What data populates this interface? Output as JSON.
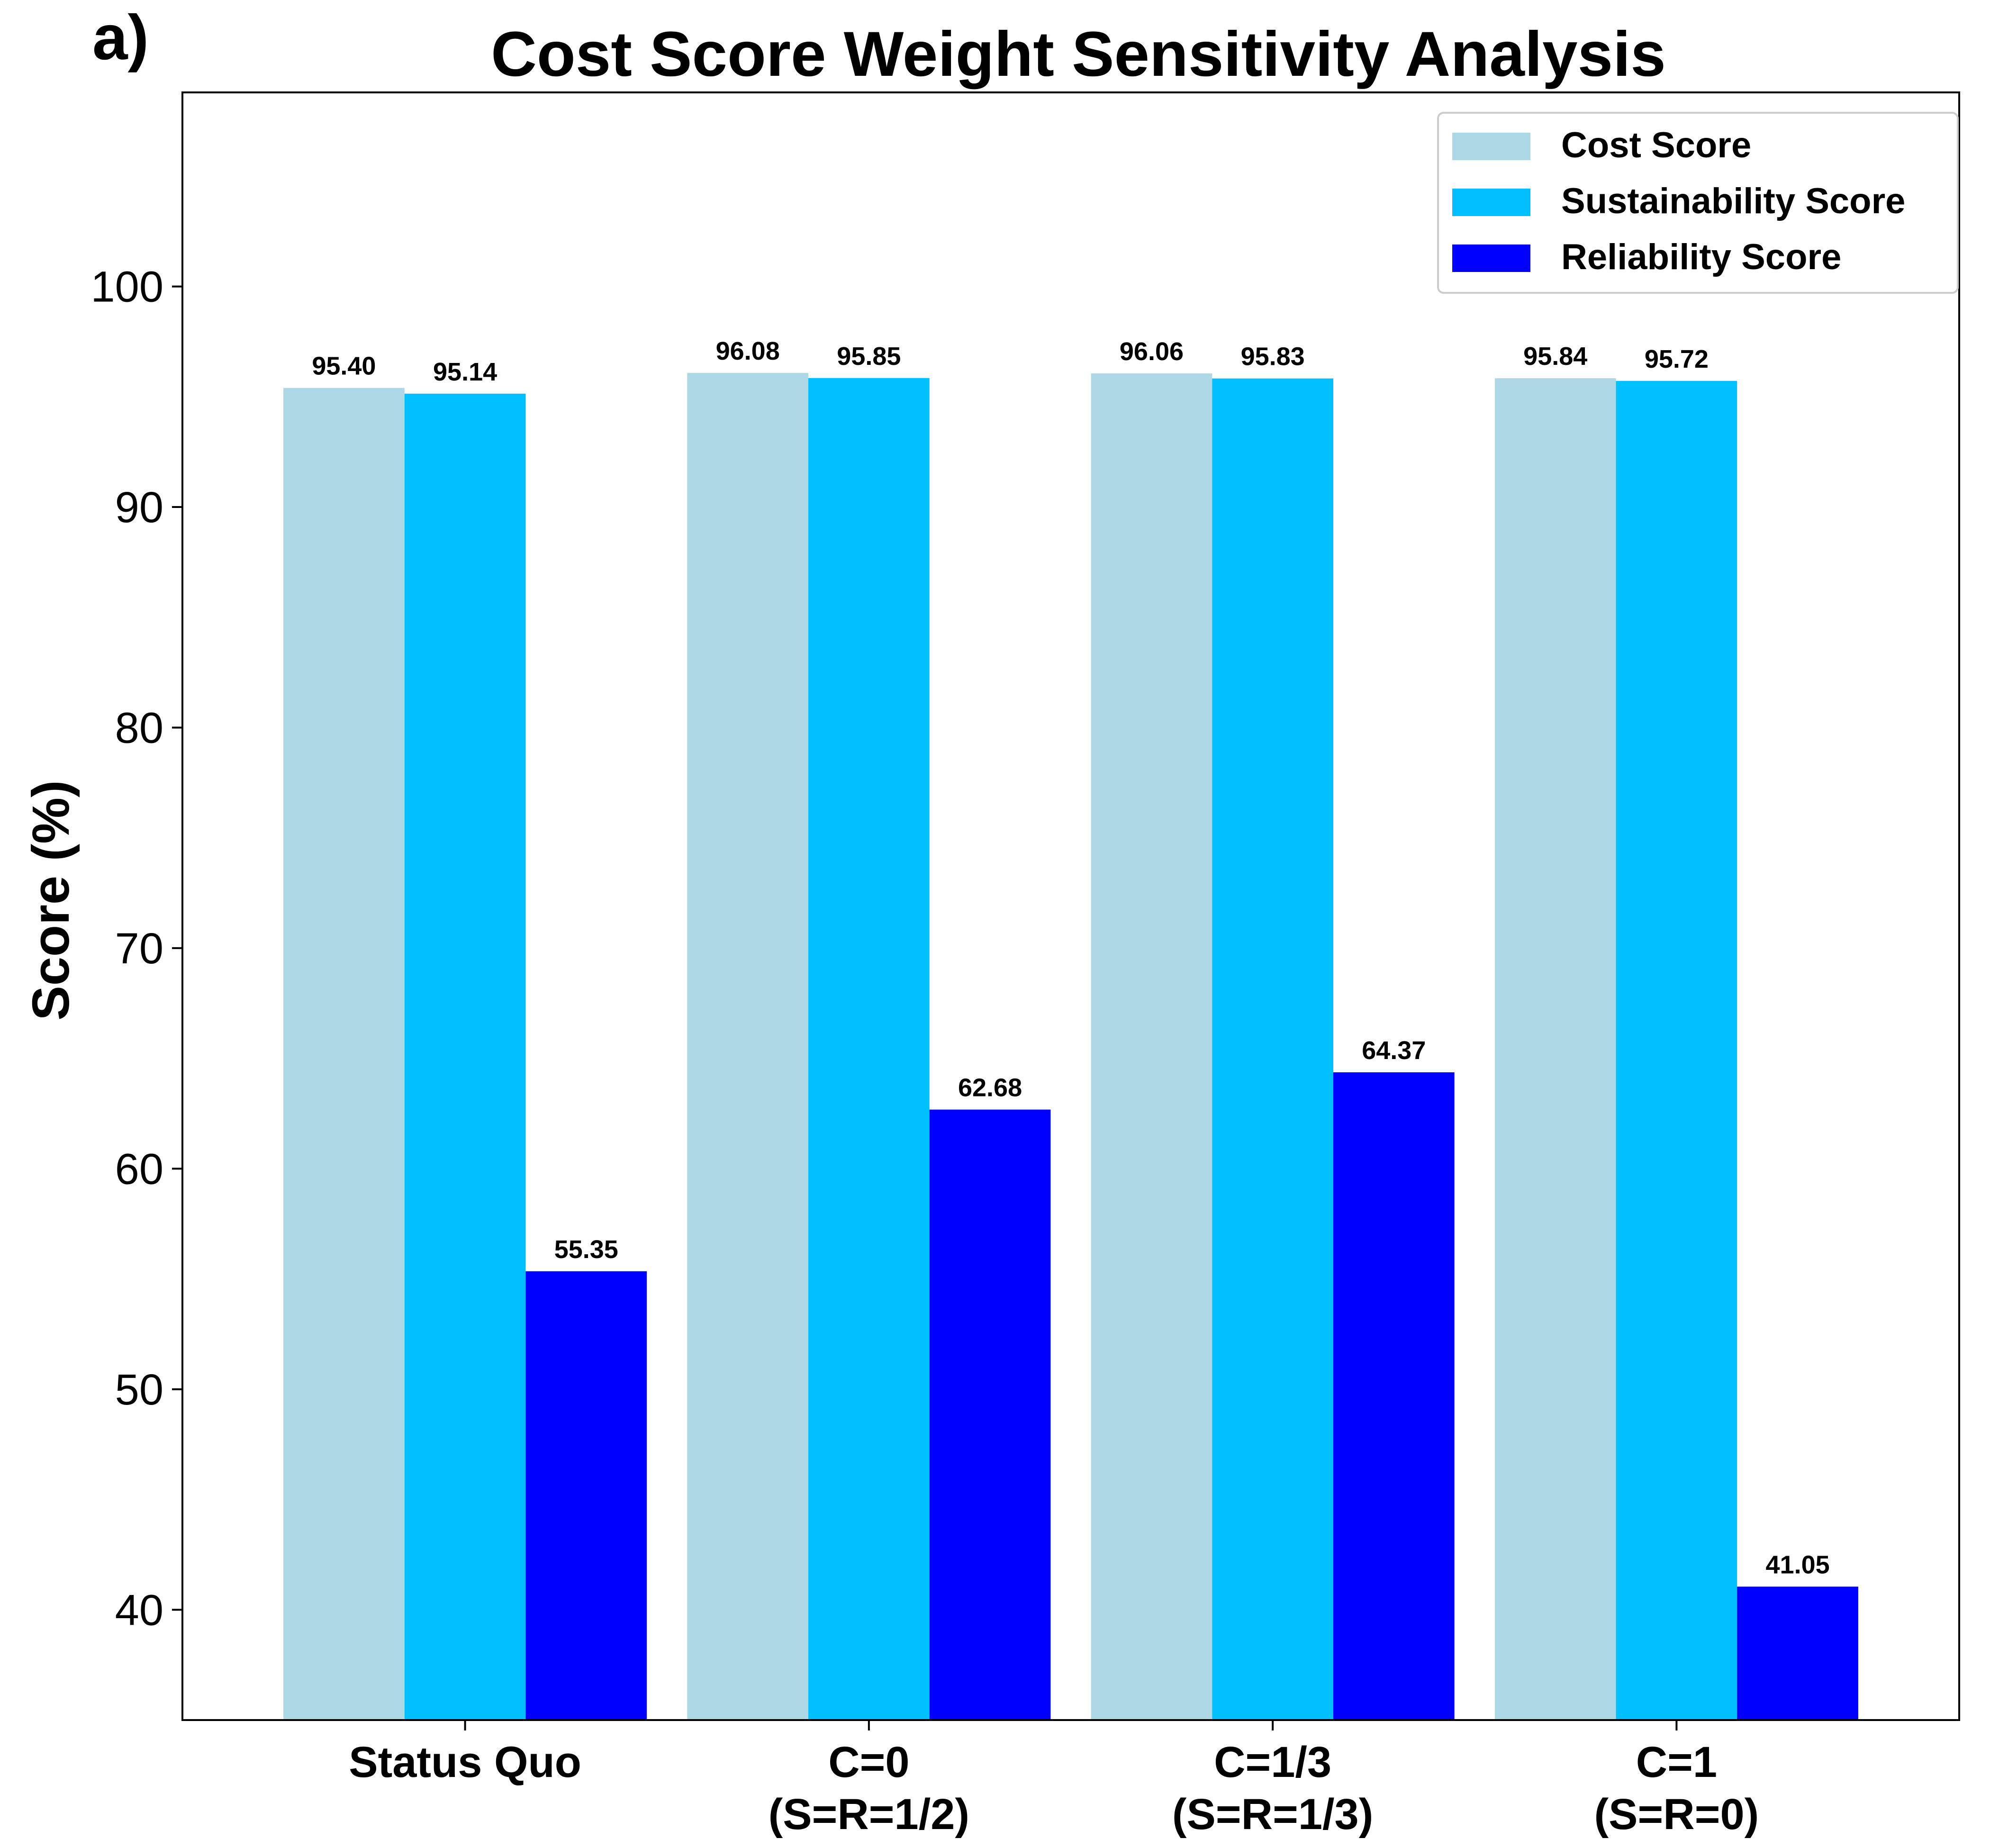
{
  "chart_data": {
    "type": "bar",
    "panel_label": "a)",
    "title": "Cost Score Weight Sensitivity Analysis",
    "ylabel": "Score (%)",
    "xlabel": "",
    "ylim": [
      35,
      108.8
    ],
    "yticks": [
      40,
      50,
      60,
      70,
      80,
      90,
      100
    ],
    "grid": false,
    "legend_position": "top-right",
    "categories": [
      [
        "Status Quo"
      ],
      [
        "C=0",
        "(S=R=1/2)"
      ],
      [
        "C=1/3",
        "(S=R=1/3)"
      ],
      [
        "C=1",
        "(S=R=0)"
      ]
    ],
    "series": [
      {
        "name": "Cost Score",
        "color": "#add8e6",
        "values": [
          95.4,
          96.08,
          96.06,
          95.84
        ],
        "labels": [
          "95.40",
          "96.08",
          "96.06",
          "95.84"
        ]
      },
      {
        "name": "Sustainability Score",
        "color": "#00bfff",
        "values": [
          95.14,
          95.85,
          95.83,
          95.72
        ],
        "labels": [
          "95.14",
          "95.85",
          "95.83",
          "95.72"
        ]
      },
      {
        "name": "Reliability Score",
        "color": "#0000ff",
        "values": [
          55.35,
          62.68,
          64.37,
          41.05
        ],
        "labels": [
          "55.35",
          "62.68",
          "64.37",
          "41.05"
        ]
      }
    ]
  }
}
